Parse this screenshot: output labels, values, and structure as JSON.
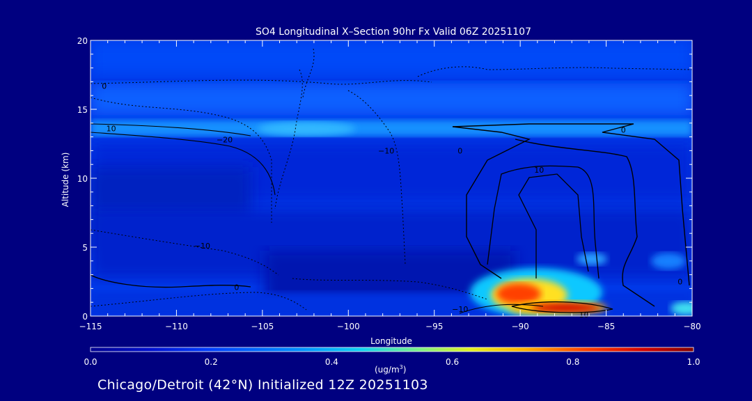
{
  "chart_data": {
    "type": "heatmap",
    "title": "SO4 Longitudinal X–Section 90hr  Fx Valid 06Z 20251107",
    "xlabel": "Longitude",
    "ylabel": "Altitude (km)",
    "xlim": [
      -115,
      -80
    ],
    "ylim": [
      0,
      20
    ],
    "x_ticks": [
      -115,
      -110,
      -105,
      -100,
      -95,
      -90,
      -85,
      -80
    ],
    "x_tick_labels": [
      "−115",
      "−110",
      "−105",
      "−100",
      "−95",
      "−90",
      "−85",
      "−80"
    ],
    "y_ticks": [
      0,
      5,
      10,
      15,
      20
    ],
    "y_tick_labels": [
      "0",
      "5",
      "10",
      "15",
      "20"
    ],
    "colorbar": {
      "min": 0.0,
      "max": 1.0,
      "tick_labels": [
        "0.0",
        "0.2",
        "0.4",
        "0.6",
        "0.8",
        "1.0"
      ],
      "units_prefix": "(ug/m",
      "units_sup": "3",
      "units_suffix": ")"
    },
    "concentration_features": [
      {
        "lon_range": [
          -115,
          -80
        ],
        "alt_range": [
          13,
          14.5
        ],
        "value": 0.35
      },
      {
        "lon_range": [
          -115,
          -80
        ],
        "alt_range": [
          14.5,
          16.5
        ],
        "value": 0.2
      },
      {
        "lon_range": [
          -92,
          -88
        ],
        "alt_range": [
          0.5,
          2.5
        ],
        "value": 0.85
      },
      {
        "lon_range": [
          -90,
          -85
        ],
        "alt_range": [
          0.3,
          1.2
        ],
        "value": 0.95
      },
      {
        "lon_range": [
          -82,
          -80
        ],
        "alt_range": [
          0.2,
          1.2
        ],
        "value": 0.5
      }
    ],
    "contour_labels": [
      {
        "text": "0",
        "lon": -114.2,
        "alt": 16.7
      },
      {
        "text": "10",
        "lon": -113.8,
        "alt": 13.6
      },
      {
        "text": "−20",
        "lon": -107.2,
        "alt": 12.8
      },
      {
        "text": "−10",
        "lon": -97.8,
        "alt": 12.0
      },
      {
        "text": "0",
        "lon": -93.5,
        "alt": 12.0
      },
      {
        "text": "10",
        "lon": -88.9,
        "alt": 10.6
      },
      {
        "text": "0",
        "lon": -84.0,
        "alt": 13.5
      },
      {
        "text": "−10",
        "lon": -108.5,
        "alt": 5.1
      },
      {
        "text": "0",
        "lon": -106.5,
        "alt": 2.1
      },
      {
        "text": "−10",
        "lon": -93.5,
        "alt": 0.5
      },
      {
        "text": "10",
        "lon": -86.3,
        "alt": 0.1
      },
      {
        "text": "0",
        "lon": -80.7,
        "alt": 2.5
      }
    ]
  },
  "footer": "Chicago/Detroit (42°N) Initialized 12Z 20251103"
}
